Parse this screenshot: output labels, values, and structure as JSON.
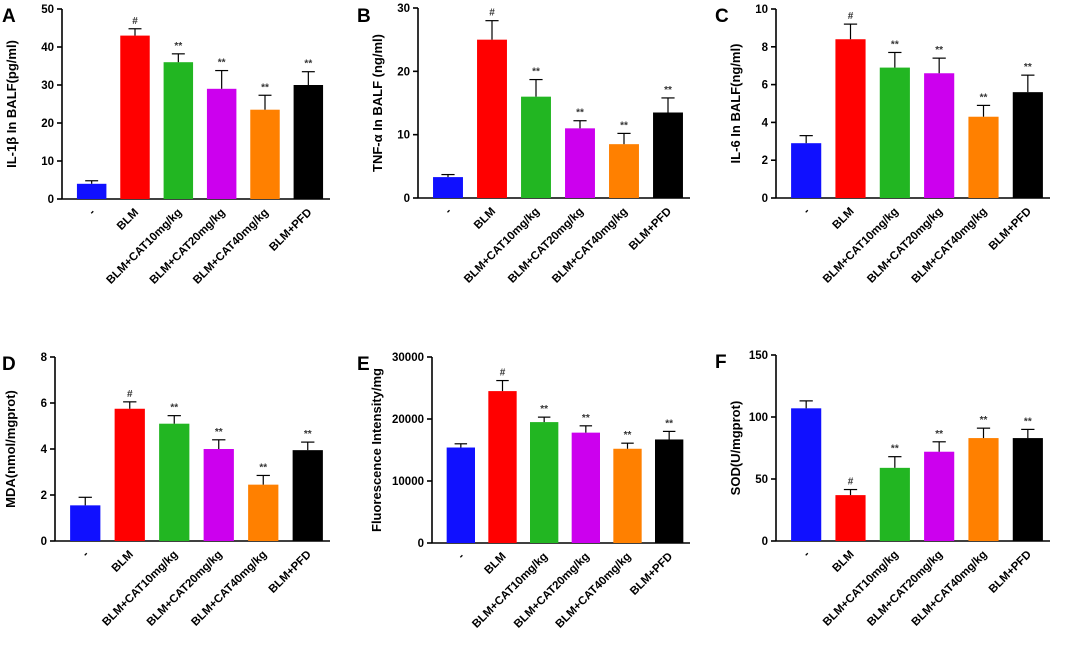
{
  "chart_data": [
    {
      "panel": "A",
      "type": "bar",
      "ylabel": "IL-1β In BALF(pg/ml)",
      "ylim": [
        0,
        50
      ],
      "yticks": [
        0,
        10,
        20,
        30,
        40,
        50
      ],
      "categories": [
        "-",
        "BLM",
        "BLM+CAT10mg/kg",
        "BLM+CAT20mg/kg",
        "BLM+CAT40mg/kg",
        "BLM+PFD"
      ],
      "values": [
        4,
        43,
        36,
        29,
        23.5,
        30
      ],
      "errors": [
        0.8,
        1.8,
        2.2,
        4.8,
        3.8,
        3.5
      ],
      "significance": [
        "",
        "#",
        "**",
        "**",
        "**",
        "**"
      ],
      "colors": [
        "#1010ff",
        "#ff0000",
        "#22b622",
        "#cc00ee",
        "#ff8000",
        "#000000"
      ]
    },
    {
      "panel": "B",
      "type": "bar",
      "ylabel": "TNF-α In BALF (ng/ml)",
      "ylim": [
        0,
        30
      ],
      "yticks": [
        0,
        10,
        20,
        30
      ],
      "categories": [
        "-",
        "BLM",
        "BLM+CAT10mg/kg",
        "BLM+CAT20mg/kg",
        "BLM+CAT40mg/kg",
        "BLM+PFD"
      ],
      "values": [
        3.3,
        25,
        16,
        11,
        8.5,
        13.5
      ],
      "errors": [
        0.4,
        3,
        2.7,
        1.2,
        1.7,
        2.3
      ],
      "significance": [
        "",
        "#",
        "**",
        "**",
        "**",
        "**"
      ],
      "colors": [
        "#1010ff",
        "#ff0000",
        "#22b622",
        "#cc00ee",
        "#ff8000",
        "#000000"
      ]
    },
    {
      "panel": "C",
      "type": "bar",
      "ylabel": "IL-6 In BALF(ng/ml)",
      "ylim": [
        0,
        10
      ],
      "yticks": [
        0,
        2,
        4,
        6,
        8,
        10
      ],
      "categories": [
        "-",
        "BLM",
        "BLM+CAT10mg/kg",
        "BLM+CAT20mg/kg",
        "BLM+CAT40mg/kg",
        "BLM+PFD"
      ],
      "values": [
        2.9,
        8.4,
        6.9,
        6.6,
        4.3,
        5.6
      ],
      "errors": [
        0.4,
        0.8,
        0.8,
        0.8,
        0.6,
        0.9
      ],
      "significance": [
        "",
        "#",
        "**",
        "**",
        "**",
        "**"
      ],
      "colors": [
        "#1010ff",
        "#ff0000",
        "#22b622",
        "#cc00ee",
        "#ff8000",
        "#000000"
      ]
    },
    {
      "panel": "D",
      "type": "bar",
      "ylabel": "MDA(nmol/mgprot)",
      "ylim": [
        0,
        8
      ],
      "yticks": [
        0,
        2,
        4,
        6,
        8
      ],
      "categories": [
        "-",
        "BLM",
        "BLM+CAT10mg/kg",
        "BLM+CAT20mg/kg",
        "BLM+CAT40mg/kg",
        "BLM+PFD"
      ],
      "values": [
        1.55,
        5.75,
        5.1,
        4.0,
        2.45,
        3.95
      ],
      "errors": [
        0.35,
        0.3,
        0.35,
        0.4,
        0.4,
        0.35
      ],
      "significance": [
        "",
        "#",
        "**",
        "**",
        "**",
        "**"
      ],
      "colors": [
        "#1010ff",
        "#ff0000",
        "#22b622",
        "#cc00ee",
        "#ff8000",
        "#000000"
      ]
    },
    {
      "panel": "E",
      "type": "bar",
      "ylabel": "Fluorescence Intensity/mg",
      "ylim": [
        0,
        30000
      ],
      "yticks": [
        0,
        10000,
        20000,
        30000
      ],
      "categories": [
        "-",
        "BLM",
        "BLM+CAT10mg/kg",
        "BLM+CAT20mg/kg",
        "BLM+CAT40mg/kg",
        "BLM+PFD"
      ],
      "values": [
        15400,
        24500,
        19500,
        17800,
        15200,
        16700
      ],
      "errors": [
        600,
        1700,
        800,
        1100,
        900,
        1300
      ],
      "significance": [
        "",
        "#",
        "**",
        "**",
        "**",
        "**"
      ],
      "colors": [
        "#1010ff",
        "#ff0000",
        "#22b622",
        "#cc00ee",
        "#ff8000",
        "#000000"
      ]
    },
    {
      "panel": "F",
      "type": "bar",
      "ylabel": "SOD(U/mgprot)",
      "ylim": [
        0,
        150
      ],
      "yticks": [
        0,
        50,
        100,
        150
      ],
      "categories": [
        "-",
        "BLM",
        "BLM+CAT10mg/kg",
        "BLM+CAT20mg/kg",
        "BLM+CAT40mg/kg",
        "BLM+PFD"
      ],
      "values": [
        107,
        37,
        59,
        72,
        83,
        83
      ],
      "errors": [
        6,
        4.5,
        9,
        8,
        8,
        7
      ],
      "significance": [
        "",
        "#",
        "**",
        "**",
        "**",
        "**"
      ],
      "colors": [
        "#1010ff",
        "#ff0000",
        "#22b622",
        "#cc00ee",
        "#ff8000",
        "#000000"
      ]
    }
  ]
}
